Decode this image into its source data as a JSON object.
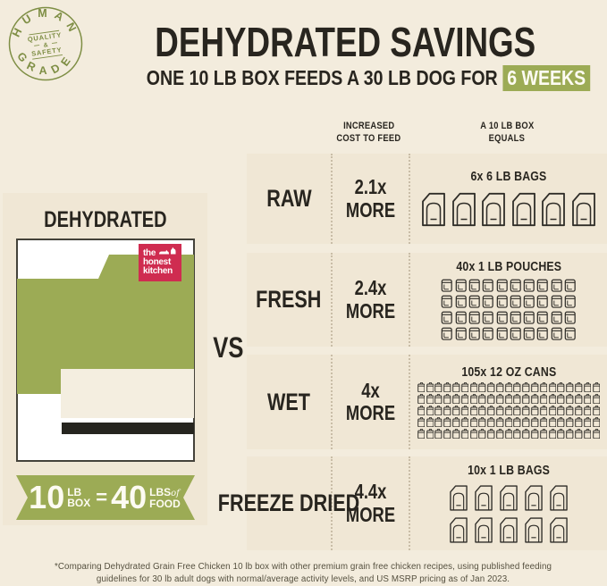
{
  "colors": {
    "page_bg": "#f3ecdd",
    "panel_bg": "#f0e7d5",
    "accent_green": "#9cab55",
    "badge_olive": "#7e8e44",
    "logo_red": "#cf2c50",
    "dark_text": "#28251f",
    "footnote_text": "#55503f"
  },
  "badge": {
    "arc_top": "HUMAN",
    "arc_bottom": "GRADE",
    "middle_line1": "QUALITY",
    "middle_amp": "&",
    "middle_line2": "SAFETY"
  },
  "header": {
    "title": "DEHYDRATED SAVINGS",
    "subtitle_prefix": "ONE 10 LB BOX FEEDS A 30 LB DOG FOR ",
    "subtitle_highlight": "6 WEEKS"
  },
  "table_headers": {
    "cost_line1": "INCREASED",
    "cost_line2": "COST TO FEED",
    "equals_line1": "A 10 LB BOX",
    "equals_line2": "EQUALS"
  },
  "left_panel": {
    "heading": "DEHYDRATED",
    "logo_line1": "the",
    "logo_line2": "honest",
    "logo_line3": "kitchen",
    "ribbon": {
      "value1": "10",
      "unit1_top": "LB",
      "unit1_bottom": "BOX",
      "equals": "=",
      "value2": "40",
      "unit2_top": "LBS",
      "unit2_of": "of",
      "unit2_bottom": "FOOD"
    }
  },
  "vs_label": "VS",
  "rows": [
    {
      "label": "RAW",
      "cost": "2.1x",
      "cost_suffix": "MORE",
      "equals_caption": "6x 6 LB BAGS",
      "icon": "bag-icon",
      "count": 6,
      "per_row": 6,
      "size": "lg"
    },
    {
      "label": "FRESH",
      "cost": "2.4x",
      "cost_suffix": "MORE",
      "equals_caption": "40x 1 LB POUCHES",
      "icon": "pouch-icon",
      "count": 40,
      "per_row": 10,
      "size": "sm"
    },
    {
      "label": "WET",
      "cost": "4x",
      "cost_suffix": "MORE",
      "equals_caption": "105x 12 OZ CANS",
      "icon": "can-icon",
      "count": 105,
      "per_row": 21,
      "size": "xs"
    },
    {
      "label": "FREEZE DRIED",
      "cost": "4.4x",
      "cost_suffix": "MORE",
      "equals_caption": "10x 1 LB BAGS",
      "icon": "bag-icon",
      "count": 10,
      "per_row": 5,
      "size": "md"
    }
  ],
  "footnote": "*Comparing Dehydrated Grain Free Chicken 10 lb box with other premium grain free chicken recipes, using published feeding guidelines for 30 lb adult dogs with normal/average activity levels, and US MSRP pricing as of Jan 2023."
}
